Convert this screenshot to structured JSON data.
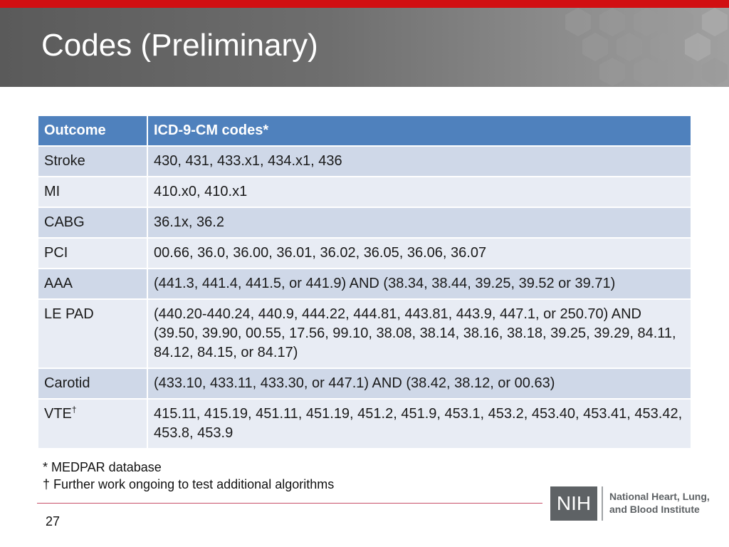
{
  "slide": {
    "title": "Codes (Preliminary)",
    "page_number": "27"
  },
  "table": {
    "headers": [
      "Outcome",
      "ICD-9-CM codes*"
    ],
    "rows": [
      {
        "outcome": "Stroke",
        "codes": "430, 431, 433.x1, 434.x1, 436"
      },
      {
        "outcome": "MI",
        "codes": "410.x0, 410.x1"
      },
      {
        "outcome": "CABG",
        "codes": "36.1x, 36.2"
      },
      {
        "outcome": "PCI",
        "codes": "00.66, 36.0, 36.00, 36.01, 36.02, 36.05, 36.06, 36.07"
      },
      {
        "outcome": "AAA",
        "codes": "(441.3, 441.4, 441.5, or 441.9) AND (38.34, 38.44, 39.25, 39.52 or 39.71)"
      },
      {
        "outcome": "LE PAD",
        "codes": "(440.20-440.24, 440.9, 444.22, 444.81, 443.81, 443.9, 447.1, or 250.70) AND (39.50, 39.90, 00.55, 17.56, 99.10, 38.08, 38.14, 38.16, 38.18, 39.25, 39.29, 84.11, 84.12, 84.15, or 84.17)"
      },
      {
        "outcome": "Carotid",
        "codes": "(433.10, 433.11, 433.30, or 447.1) AND (38.42, 38.12, or 00.63)"
      },
      {
        "outcome": "VTE",
        "outcome_mark": "†",
        "codes": "415.11, 415.19, 451.11, 451.19, 451.2, 451.9, 453.1, 453.2, 453.40, 453.41, 453.42, 453.8, 453.9"
      }
    ]
  },
  "footnotes": {
    "note_1": "*  MEDPAR database",
    "note_2": "† Further work ongoing to test additional algorithms"
  },
  "logo": {
    "acronym": "NIH",
    "name_line_1": "National Heart, Lung,",
    "name_line_2": "and Blood Institute"
  },
  "colors": {
    "accent_red": "#d10f12",
    "header_blue": "#4f81bd",
    "row_dark": "#cfd8e8",
    "row_light": "#e8ecf4",
    "logo_gray": "#5e6265"
  }
}
